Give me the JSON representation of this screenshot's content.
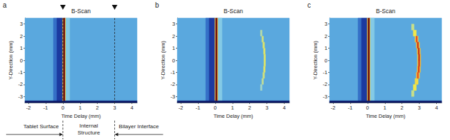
{
  "chart_data": [
    {
      "type": "heatmap",
      "panel_label": "a",
      "title": "B-Scan",
      "x_label": "Time Delay (mm)",
      "y_label": "Y-Direction (mm)",
      "xlim": [
        -2.2,
        4.3
      ],
      "xticks": [
        -2,
        -1,
        0,
        1,
        2,
        3,
        4
      ],
      "ylim": [
        -3.5,
        3.5
      ],
      "yticks": [
        -3,
        -2,
        -1,
        0,
        1,
        2,
        3
      ],
      "grid": false,
      "zlim": [
        -1,
        1
      ],
      "cells": [
        [
          -2.2,
          4.3,
          -3.5,
          3.5,
          0
        ],
        [
          -0.55,
          -0.35,
          -3.35,
          3.5,
          -0.4
        ],
        [
          -0.35,
          -0.02,
          -3.35,
          3.5,
          -0.75
        ],
        [
          -0.02,
          0.03,
          -3.35,
          3.5,
          0.55
        ],
        [
          0.03,
          0.13,
          -3.35,
          3.5,
          1
        ],
        [
          0.13,
          0.17,
          -3.35,
          3.5,
          0.55
        ],
        [
          0.17,
          0.4,
          -3.35,
          3.5,
          0.2
        ],
        [
          -2.2,
          4.3,
          -3.5,
          -3.35,
          -1
        ]
      ],
      "reference_lines": [
        0,
        3
      ],
      "annotations": [
        {
          "text": "Tablet Surface",
          "x": 0,
          "arrow": "right"
        },
        {
          "text": "Internal\nStructure",
          "x": 1.5,
          "arrow": "none"
        },
        {
          "text": "Bilayer Interface",
          "x": 3,
          "arrow": "left"
        }
      ]
    },
    {
      "type": "heatmap",
      "panel_label": "b",
      "title": "B-Scan",
      "x_label": "Time Delay (mm)",
      "y_label": "Y-Direction (mm)",
      "xlim": [
        -2.2,
        4.3
      ],
      "xticks": [
        -2,
        -1,
        0,
        1,
        2,
        3,
        4
      ],
      "ylim": [
        -3.5,
        3.5
      ],
      "yticks": [
        -3,
        -2,
        -1,
        0,
        1,
        2,
        3
      ],
      "grid": false,
      "zlim": [
        -1,
        1
      ],
      "cells": [
        [
          -2.2,
          4.3,
          -3.5,
          3.5,
          0
        ],
        [
          -0.55,
          -0.35,
          -3.35,
          3.5,
          -0.4
        ],
        [
          -0.35,
          -0.02,
          -3.35,
          3.5,
          -0.75
        ],
        [
          -0.02,
          0.03,
          -3.35,
          3.5,
          0.55
        ],
        [
          0.03,
          0.13,
          -3.35,
          3.5,
          1
        ],
        [
          0.13,
          0.17,
          -3.35,
          3.5,
          0.55
        ],
        [
          0.17,
          0.4,
          -3.35,
          3.5,
          0.2
        ],
        [
          -2.2,
          4.3,
          -3.5,
          -3.35,
          -1
        ],
        [
          2.62,
          2.72,
          2.0,
          2.5,
          0.35
        ],
        [
          2.7,
          2.8,
          1.5,
          2.0,
          0.42
        ],
        [
          2.76,
          2.86,
          1.0,
          1.5,
          0.45
        ],
        [
          2.8,
          2.9,
          0.5,
          1.0,
          0.45
        ],
        [
          2.82,
          2.92,
          0.0,
          0.5,
          0.45
        ],
        [
          2.82,
          2.92,
          -0.5,
          0.0,
          0.45
        ],
        [
          2.8,
          2.9,
          -1.0,
          -0.5,
          0.45
        ],
        [
          2.76,
          2.86,
          -1.5,
          -1.0,
          0.42
        ],
        [
          2.7,
          2.8,
          -2.0,
          -1.5,
          0.38
        ],
        [
          2.62,
          2.72,
          -2.5,
          -2.0,
          0.3
        ]
      ]
    },
    {
      "type": "heatmap",
      "panel_label": "c",
      "title": "B-Scan",
      "x_label": "Time Delay (mm)",
      "y_label": "Y-Direction (mm)",
      "xlim": [
        -2.2,
        4.3
      ],
      "xticks": [
        -2,
        -1,
        0,
        1,
        2,
        3,
        4
      ],
      "ylim": [
        -3.5,
        3.5
      ],
      "yticks": [
        -3,
        -2,
        -1,
        0,
        1,
        2,
        3
      ],
      "grid": false,
      "zlim": [
        -1,
        1
      ],
      "cells": [
        [
          -2.2,
          4.3,
          -3.5,
          3.5,
          0
        ],
        [
          -0.55,
          -0.35,
          -3.35,
          3.5,
          -0.4
        ],
        [
          -0.35,
          -0.02,
          -3.35,
          3.5,
          -0.75
        ],
        [
          -0.02,
          0.03,
          -3.35,
          3.5,
          0.55
        ],
        [
          0.03,
          0.13,
          -3.35,
          3.5,
          1
        ],
        [
          0.13,
          0.17,
          -3.35,
          3.5,
          0.55
        ],
        [
          0.17,
          0.4,
          -3.35,
          3.5,
          0.2
        ],
        [
          -2.2,
          4.3,
          -3.5,
          -3.35,
          -1
        ],
        [
          2.55,
          2.7,
          2.5,
          3.0,
          0.4
        ],
        [
          2.65,
          2.83,
          2.0,
          2.5,
          0.5
        ],
        [
          2.75,
          2.94,
          1.5,
          2.0,
          0.52
        ],
        [
          2.82,
          3.02,
          1.0,
          1.5,
          0.55
        ],
        [
          2.87,
          3.07,
          0.5,
          1.0,
          0.55
        ],
        [
          2.89,
          3.09,
          0.0,
          0.5,
          0.55
        ],
        [
          2.89,
          3.09,
          -0.5,
          0.0,
          0.55
        ],
        [
          2.87,
          3.07,
          -1.0,
          -0.5,
          0.55
        ],
        [
          2.82,
          3.02,
          -1.5,
          -1.0,
          0.55
        ],
        [
          2.75,
          2.94,
          -2.0,
          -1.5,
          0.52
        ],
        [
          2.65,
          2.83,
          -2.5,
          -2.0,
          0.5
        ],
        [
          2.55,
          2.7,
          -3.0,
          -2.5,
          0.4
        ],
        [
          2.81,
          2.89,
          1.5,
          2.0,
          0.75
        ],
        [
          2.88,
          2.96,
          1.0,
          1.5,
          0.8
        ],
        [
          2.93,
          3.01,
          0.5,
          1.0,
          0.82
        ],
        [
          2.95,
          3.03,
          0.0,
          0.5,
          0.82
        ],
        [
          2.95,
          3.03,
          -0.5,
          0.0,
          0.8
        ],
        [
          2.93,
          3.01,
          -1.0,
          -0.5,
          0.78
        ],
        [
          2.88,
          2.96,
          -1.5,
          -1.0,
          0.72
        ]
      ]
    }
  ]
}
